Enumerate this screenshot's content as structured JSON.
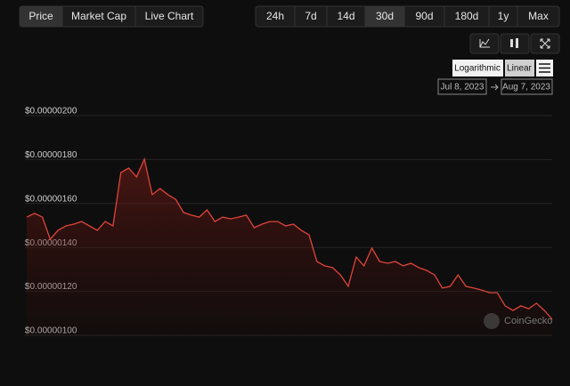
{
  "tabs": [
    "Price",
    "Market Cap",
    "Live Chart"
  ],
  "ranges": [
    "24h",
    "7d",
    "14d",
    "30d",
    "90d",
    "180d",
    "1y",
    "Max"
  ],
  "scales": [
    "Logarithmic",
    "Linear"
  ],
  "date_from": "Jul 8, 2023",
  "date_to": "Aug 7, 2023",
  "watermark": "CoinGecko",
  "chart_data": {
    "type": "line",
    "color": "#e0443a",
    "grid": true,
    "ylim": [
      1e-06,
      2e-06
    ],
    "yticks": [
      {
        "value": 2e-06,
        "label": "$0.00000200"
      },
      {
        "value": 1.8e-06,
        "label": "$0.00000180"
      },
      {
        "value": 1.6e-06,
        "label": "$0.00000160"
      },
      {
        "value": 1.4e-06,
        "label": "$0.00000140"
      },
      {
        "value": 1.2e-06,
        "label": "$0.00000120"
      },
      {
        "value": 1e-06,
        "label": "$0.00000100"
      }
    ],
    "values": [
      1.538e-06,
      1.555e-06,
      1.538e-06,
      1.437e-06,
      1.478e-06,
      1.498e-06,
      1.506e-06,
      1.518e-06,
      1.498e-06,
      1.478e-06,
      1.518e-06,
      1.498e-06,
      1.741e-06,
      1.761e-06,
      1.721e-06,
      1.802e-06,
      1.64e-06,
      1.668e-06,
      1.64e-06,
      1.619e-06,
      1.559e-06,
      1.547e-06,
      1.538e-06,
      1.571e-06,
      1.518e-06,
      1.538e-06,
      1.53e-06,
      1.538e-06,
      1.547e-06,
      1.49e-06,
      1.506e-06,
      1.518e-06,
      1.518e-06,
      1.498e-06,
      1.506e-06,
      1.478e-06,
      1.457e-06,
      1.336e-06,
      1.316e-06,
      1.308e-06,
      1.275e-06,
      1.223e-06,
      1.356e-06,
      1.316e-06,
      1.397e-06,
      1.336e-06,
      1.328e-06,
      1.336e-06,
      1.316e-06,
      1.328e-06,
      1.308e-06,
      1.295e-06,
      1.275e-06,
      1.215e-06,
      1.223e-06,
      1.275e-06,
      1.223e-06,
      1.215e-06,
      1.206e-06,
      1.194e-06,
      1.194e-06,
      1.134e-06,
      1.113e-06,
      1.134e-06,
      1.121e-06,
      1.146e-06,
      1.113e-06,
      1.073e-06
    ]
  }
}
